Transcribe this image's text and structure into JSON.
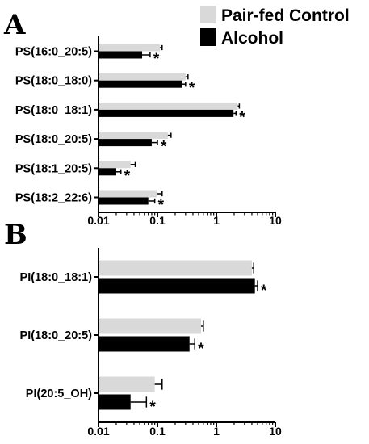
{
  "colors": {
    "control": "#d9d9d9",
    "alcohol": "#000000",
    "axis": "#000000"
  },
  "legend": [
    {
      "label": "Pair-fed Control",
      "color": "#d9d9d9"
    },
    {
      "label": "Alcohol",
      "color": "#000000"
    }
  ],
  "chart_data": [
    {
      "panel": "A",
      "type": "bar",
      "orientation": "horizontal",
      "xscale": "log",
      "xlim": [
        0.01,
        10
      ],
      "xticks": [
        "0.01",
        "0.1",
        "1",
        "10"
      ],
      "categories": [
        "PS(16:0_20:5)",
        "PS(18:0_18:0)",
        "PS(18:0_18:1)",
        "PS(18:0_20:5)",
        "PS(18:1_20:5)",
        "PS(18:2_22:6)"
      ],
      "series": [
        {
          "name": "Pair-fed Control",
          "values": [
            0.11,
            0.3,
            2.3,
            0.15,
            0.035,
            0.1
          ],
          "errors": [
            0.12,
            0.33,
            2.45,
            0.17,
            0.042,
            0.12
          ]
        },
        {
          "name": "Alcohol",
          "values": [
            0.055,
            0.26,
            1.95,
            0.08,
            0.02,
            0.07
          ],
          "errors": [
            0.075,
            0.3,
            2.15,
            0.1,
            0.024,
            0.09
          ]
        }
      ],
      "significance": [
        "*",
        "*",
        "*",
        "*",
        "*",
        "*"
      ]
    },
    {
      "panel": "B",
      "type": "bar",
      "orientation": "horizontal",
      "xscale": "log",
      "xlim": [
        0.01,
        10
      ],
      "xticks": [
        "0.01",
        "0.1",
        "1",
        "10"
      ],
      "categories": [
        "PI(18:0_18:1)",
        "PI(18:0_20:5)",
        "PI(20:5_OH)"
      ],
      "series": [
        {
          "name": "Pair-fed Control",
          "values": [
            4.0,
            0.55,
            0.09
          ],
          "errors": [
            4.3,
            0.6,
            0.12
          ]
        },
        {
          "name": "Alcohol",
          "values": [
            4.5,
            0.35,
            0.035
          ],
          "errors": [
            5.0,
            0.43,
            0.065
          ]
        }
      ],
      "significance": [
        "*",
        "*",
        "*"
      ]
    }
  ]
}
